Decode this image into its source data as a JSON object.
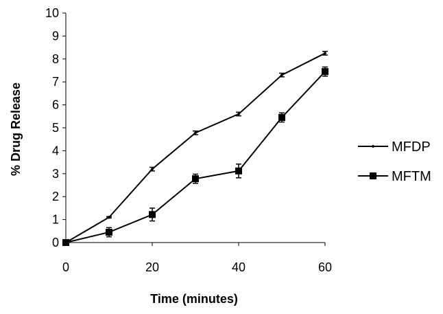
{
  "chart_data": {
    "type": "line",
    "title": "",
    "xlabel": "Time (minutes)",
    "ylabel": "% Drug Release",
    "xlim": [
      0,
      60
    ],
    "ylim": [
      0,
      10
    ],
    "x_ticks": [
      0,
      20,
      40,
      60
    ],
    "y_ticks": [
      0,
      1,
      2,
      3,
      4,
      5,
      6,
      7,
      8,
      9,
      10
    ],
    "x_tick_labels": [
      "0",
      "20",
      "40",
      "60"
    ],
    "y_tick_labels": [
      "0",
      "1",
      "2",
      "3",
      "4",
      "5",
      "6",
      "7",
      "8",
      "9",
      "10"
    ],
    "grid": false,
    "legend_position": "right",
    "x": [
      0,
      10,
      20,
      30,
      40,
      50,
      60
    ],
    "series": [
      {
        "name": "MFDP",
        "marker": "diamond",
        "color": "#000000",
        "values": [
          0,
          1.1,
          3.2,
          4.78,
          5.6,
          7.3,
          8.25
        ],
        "errors": [
          0.03,
          0.03,
          0.08,
          0.08,
          0.08,
          0.08,
          0.08
        ]
      },
      {
        "name": "MFTM",
        "marker": "square",
        "color": "#000000",
        "values": [
          0,
          0.45,
          1.22,
          2.78,
          3.12,
          5.45,
          7.45
        ],
        "errors": [
          0.03,
          0.2,
          0.28,
          0.2,
          0.3,
          0.2,
          0.2
        ]
      }
    ]
  }
}
